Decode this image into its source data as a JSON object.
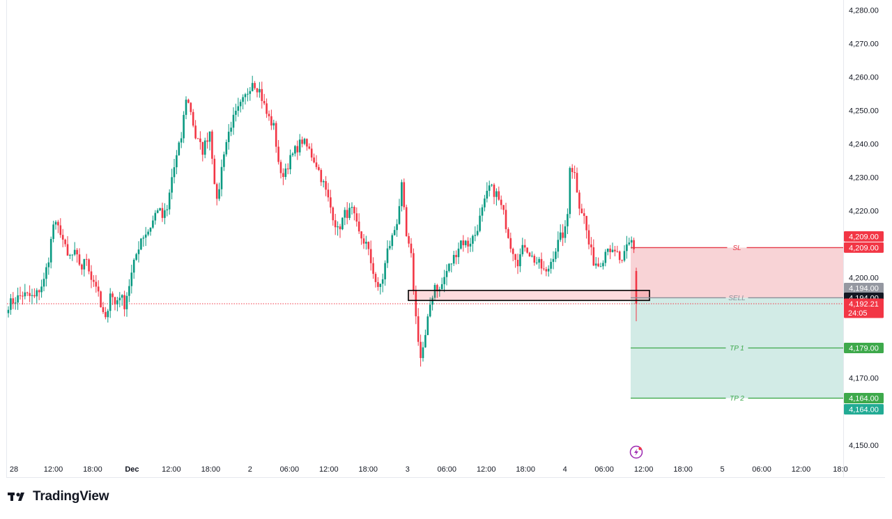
{
  "brand": {
    "name": "TradingView",
    "logo_text": "TV"
  },
  "colors": {
    "bull": "#089981",
    "bear": "#f23645",
    "sl_zone": "#f8d3d6",
    "tp_zone": "#d2ebe6",
    "sl_line": "#e53948",
    "tp_line": "#3ea94b",
    "grid": "#f0f3fa",
    "axis_text": "#131722"
  },
  "chart_data": {
    "type": "candlestick",
    "symbol_hint": "",
    "ylim": [
      4146,
      4283
    ],
    "y_ticks": [
      4150,
      4160,
      4170,
      4180,
      4190,
      4200,
      4210,
      4220,
      4230,
      4240,
      4250,
      4260,
      4270,
      4280
    ],
    "y_tick_labels": [
      "4,150.00",
      "",
      "4,170.00",
      "",
      "",
      "4,200.00",
      "",
      "4,220.00",
      "4,230.00",
      "4,240.00",
      "4,250.00",
      "4,260.00",
      "4,270.00",
      "4,280.00"
    ],
    "x_ticks": [
      {
        "label": "28",
        "bold": false
      },
      {
        "label": "12:00",
        "bold": false
      },
      {
        "label": "18:00",
        "bold": false
      },
      {
        "label": "Dec",
        "bold": true
      },
      {
        "label": "12:00",
        "bold": false
      },
      {
        "label": "18:00",
        "bold": false
      },
      {
        "label": "2",
        "bold": false
      },
      {
        "label": "06:00",
        "bold": false
      },
      {
        "label": "12:00",
        "bold": false
      },
      {
        "label": "18:00",
        "bold": false
      },
      {
        "label": "3",
        "bold": false
      },
      {
        "label": "06:00",
        "bold": false
      },
      {
        "label": "12:00",
        "bold": false
      },
      {
        "label": "18:00",
        "bold": false
      },
      {
        "label": "4",
        "bold": false
      },
      {
        "label": "06:00",
        "bold": false
      },
      {
        "label": "12:00",
        "bold": false
      },
      {
        "label": "18:00",
        "bold": false
      },
      {
        "label": "5",
        "bold": false
      },
      {
        "label": "06:00",
        "bold": false
      },
      {
        "label": "12:00",
        "bold": false
      },
      {
        "label": "18:0",
        "bold": false
      }
    ],
    "path_points": [
      [
        0,
        4192
      ],
      [
        6,
        4195
      ],
      [
        11,
        4194
      ],
      [
        15,
        4199
      ],
      [
        17,
        4206
      ],
      [
        19,
        4216
      ],
      [
        22,
        4214
      ],
      [
        25,
        4206
      ],
      [
        28,
        4207
      ],
      [
        31,
        4203
      ],
      [
        33,
        4206
      ],
      [
        35,
        4200
      ],
      [
        37,
        4198
      ],
      [
        39,
        4191
      ],
      [
        41,
        4187
      ],
      [
        43,
        4196
      ],
      [
        45,
        4192
      ],
      [
        47,
        4195
      ],
      [
        49,
        4192
      ],
      [
        51,
        4198
      ],
      [
        54,
        4207
      ],
      [
        56,
        4212
      ],
      [
        59,
        4214
      ],
      [
        61,
        4217
      ],
      [
        63,
        4221
      ],
      [
        65,
        4218
      ],
      [
        67,
        4220
      ],
      [
        69,
        4230
      ],
      [
        71,
        4236
      ],
      [
        73,
        4242
      ],
      [
        75,
        4254
      ],
      [
        77,
        4250
      ],
      [
        79,
        4242
      ],
      [
        82,
        4238
      ],
      [
        85,
        4244
      ],
      [
        88,
        4222
      ],
      [
        91,
        4238
      ],
      [
        94,
        4246
      ],
      [
        97,
        4250
      ],
      [
        100,
        4254
      ],
      [
        103,
        4259
      ],
      [
        106,
        4256
      ],
      [
        109,
        4249
      ],
      [
        112,
        4245
      ],
      [
        115,
        4230
      ],
      [
        118,
        4234
      ],
      [
        121,
        4238
      ],
      [
        124,
        4241
      ],
      [
        127,
        4238
      ],
      [
        130,
        4234
      ],
      [
        133,
        4228
      ],
      [
        136,
        4221
      ],
      [
        139,
        4214
      ],
      [
        142,
        4219
      ],
      [
        145,
        4220
      ],
      [
        148,
        4213
      ],
      [
        151,
        4210
      ],
      [
        154,
        4202
      ],
      [
        156,
        4196
      ],
      [
        158,
        4200
      ],
      [
        160,
        4208
      ],
      [
        162,
        4212
      ],
      [
        164,
        4217
      ],
      [
        166,
        4227
      ],
      [
        168,
        4212
      ],
      [
        170,
        4206
      ],
      [
        172,
        4188
      ],
      [
        174,
        4176
      ],
      [
        176,
        4182
      ],
      [
        178,
        4192
      ],
      [
        180,
        4198
      ],
      [
        182,
        4196
      ],
      [
        185,
        4202
      ],
      [
        188,
        4206
      ],
      [
        191,
        4211
      ],
      [
        194,
        4210
      ],
      [
        197,
        4213
      ],
      [
        200,
        4220
      ],
      [
        203,
        4227
      ],
      [
        206,
        4225
      ],
      [
        209,
        4219
      ],
      [
        212,
        4210
      ],
      [
        215,
        4205
      ],
      [
        218,
        4210
      ],
      [
        221,
        4206
      ],
      [
        224,
        4204
      ],
      [
        227,
        4201
      ],
      [
        230,
        4207
      ],
      [
        233,
        4212
      ],
      [
        235,
        4214
      ],
      [
        236,
        4219
      ],
      [
        237,
        4234
      ],
      [
        239,
        4231
      ],
      [
        241,
        4222
      ],
      [
        243,
        4218
      ],
      [
        245,
        4210
      ],
      [
        247,
        4205
      ],
      [
        249,
        4204
      ],
      [
        251,
        4206
      ],
      [
        253,
        4210
      ],
      [
        255,
        4207
      ],
      [
        257,
        4207
      ],
      [
        259,
        4204
      ],
      [
        261,
        4209
      ],
      [
        263,
        4211
      ],
      [
        265,
        4207
      ]
    ],
    "last_candle": {
      "open": 4202,
      "high": 4203,
      "low": 4187,
      "close": 4192.21
    },
    "zone_box": {
      "x_index_start": 170,
      "x_index_end": 270,
      "top": 4196.2,
      "bottom": 4193.2
    },
    "position": {
      "type": "short",
      "entry": 4194.0,
      "stop_loss": 4209.0,
      "tp1": 4179.0,
      "tp2": 4164.0,
      "labels": {
        "sl": "SL",
        "entry": "SELL",
        "tp1": "TP 1",
        "tp2": "TP 2"
      }
    },
    "current_price": 4192.21,
    "price_labels": {
      "sl_a": "4,209.00",
      "sl_b": "4,209.00",
      "entry_gray": "4,194.00",
      "entry_black": "4,194.00",
      "current": "4,192.21",
      "countdown": "24:05",
      "tp1": "4,179.00",
      "tp2_a": "4,164.00",
      "tp2_b": "4,164.00"
    }
  }
}
